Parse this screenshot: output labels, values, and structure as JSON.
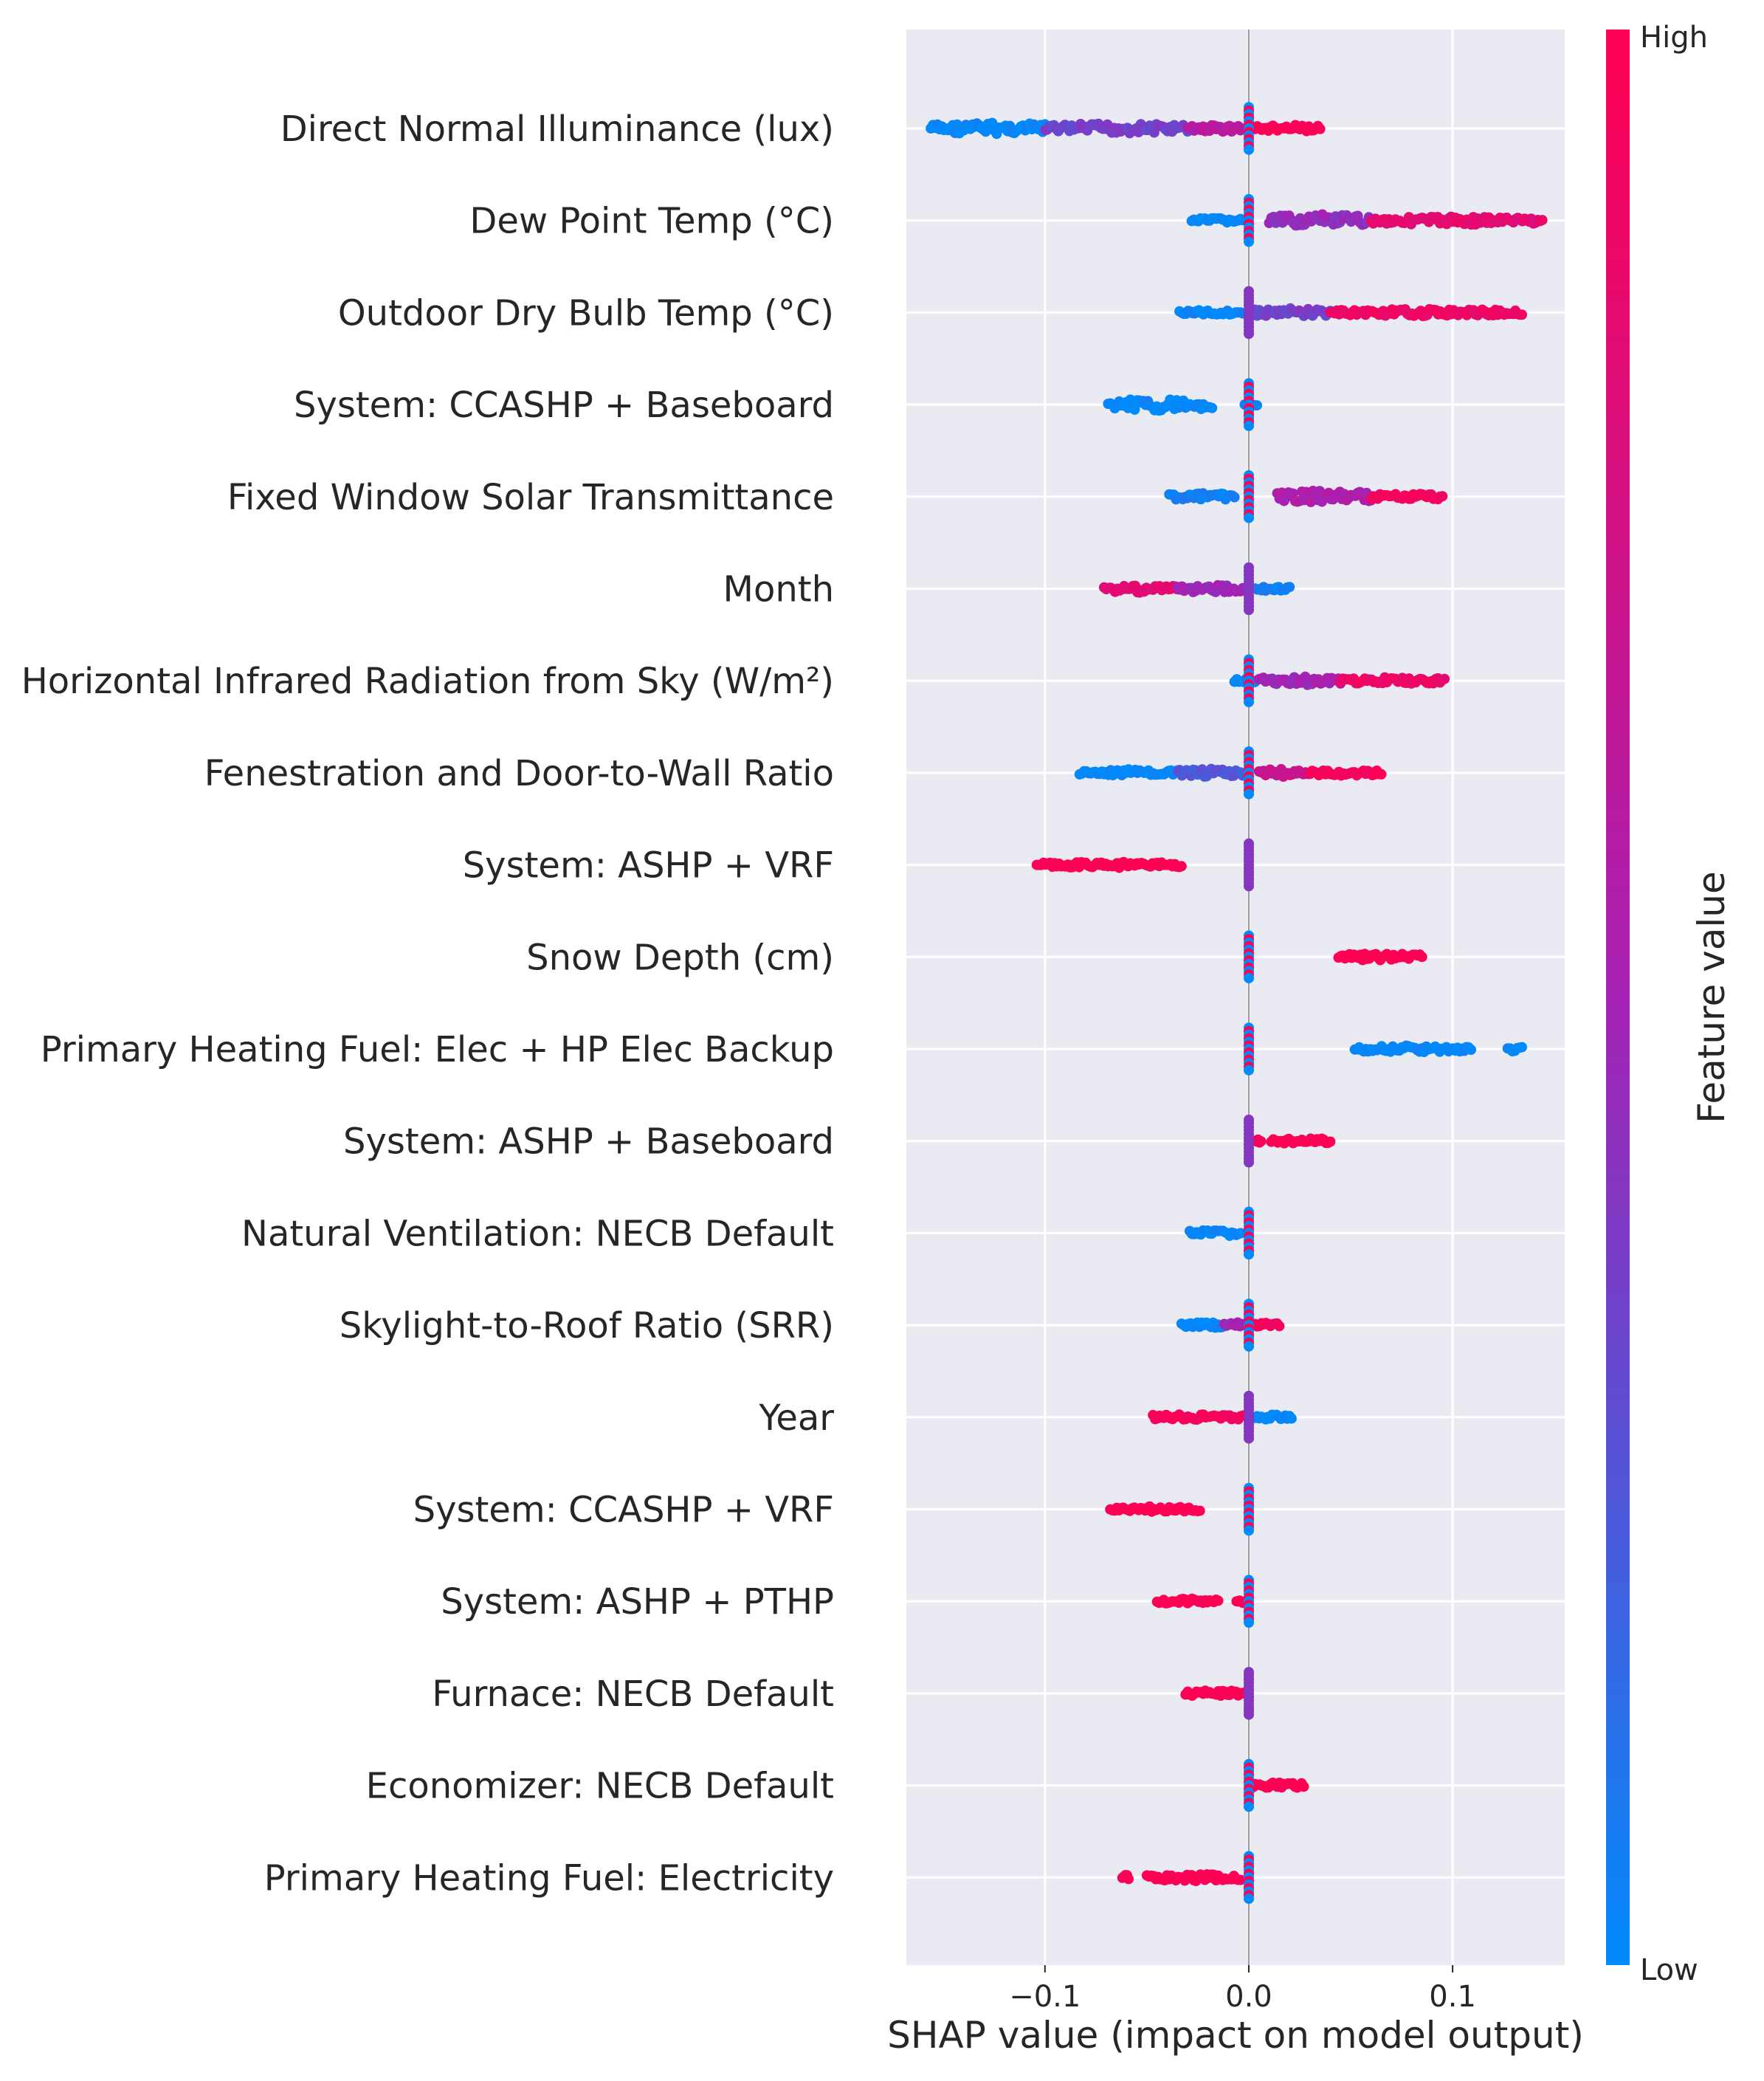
{
  "chart_data": {
    "type": "scatter",
    "subtype": "shap-beeswarm",
    "title": "",
    "xlabel": "SHAP value (impact on model output)",
    "ylabel": "",
    "xlim": [
      -0.168,
      0.155
    ],
    "xticks": [
      -0.1,
      0.0,
      0.1
    ],
    "xtick_labels": [
      "−0.1",
      "0.0",
      "0.1"
    ],
    "grid": true,
    "background": "#eaeaf2",
    "colorbar": {
      "label": "Feature value",
      "high_label": "High",
      "low_label": "Low",
      "low_color": "#008afb",
      "mid_color": "#a521b3",
      "high_color": "#ff0052"
    },
    "features": [
      {
        "name": "Direct Normal Illuminance (lux)",
        "min": -0.156,
        "max": 0.035,
        "segments": [
          [
            -0.156,
            -0.1,
            0.0,
            14
          ],
          [
            -0.1,
            -0.03,
            0.35,
            12
          ],
          [
            -0.03,
            -0.003,
            0.6,
            9
          ],
          [
            0.003,
            0.035,
            1.0,
            8
          ]
        ]
      },
      {
        "name": "Dew Point Temp (°C)",
        "min": -0.028,
        "max": 0.144,
        "segments": [
          [
            -0.028,
            -0.003,
            0.0,
            6
          ],
          [
            0.01,
            0.06,
            0.45,
            14
          ],
          [
            0.06,
            0.144,
            0.85,
            10
          ]
        ]
      },
      {
        "name": "Outdoor Dry Bulb Temp (°C)",
        "min": -0.034,
        "max": 0.134,
        "segments": [
          [
            -0.034,
            -0.003,
            0.0,
            6
          ],
          [
            0.003,
            0.04,
            0.35,
            10
          ],
          [
            0.04,
            0.134,
            0.9,
            8
          ]
        ]
      },
      {
        "name": "System: CCASHP + Baseboard",
        "min": -0.069,
        "max": 0.004,
        "segments": [
          [
            -0.069,
            -0.018,
            0.0,
            14
          ],
          [
            -0.002,
            0.004,
            0.0,
            4
          ]
        ]
      },
      {
        "name": "Fixed Window Solar Transmittance",
        "min": -0.039,
        "max": 0.095,
        "segments": [
          [
            -0.039,
            -0.007,
            0.05,
            8
          ],
          [
            0.014,
            0.06,
            0.55,
            14
          ],
          [
            0.06,
            0.095,
            0.95,
            8
          ]
        ]
      },
      {
        "name": "Month",
        "min": -0.071,
        "max": 0.02,
        "segments": [
          [
            -0.071,
            -0.035,
            0.85,
            9
          ],
          [
            -0.035,
            -0.003,
            0.5,
            9
          ],
          [
            0.003,
            0.02,
            0.05,
            6
          ]
        ]
      },
      {
        "name": "Horizontal Infrared Radiation from Sky (W/m²)",
        "min": -0.007,
        "max": 0.096,
        "segments": [
          [
            -0.007,
            0.003,
            0.0,
            5
          ],
          [
            0.005,
            0.045,
            0.5,
            10
          ],
          [
            0.045,
            0.096,
            0.9,
            8
          ]
        ]
      },
      {
        "name": "Fenestration and Door-to-Wall Ratio",
        "min": -0.083,
        "max": 0.065,
        "segments": [
          [
            -0.083,
            -0.035,
            0.0,
            8
          ],
          [
            -0.035,
            -0.003,
            0.25,
            9
          ],
          [
            0.005,
            0.03,
            0.7,
            9
          ],
          [
            0.03,
            0.065,
            0.95,
            7
          ]
        ]
      },
      {
        "name": "System: ASHP + VRF",
        "min": -0.104,
        "max": -0.033,
        "segments": [
          [
            -0.104,
            -0.033,
            1.0,
            7
          ]
        ]
      },
      {
        "name": "Snow Depth (cm)",
        "min": 0.044,
        "max": 0.085,
        "segments": [
          [
            0.044,
            0.085,
            1.0,
            9
          ]
        ]
      },
      {
        "name": "Primary Heating Fuel: Elec + HP Elec Backup",
        "min": 0.052,
        "max": 0.134,
        "segments": [
          [
            0.052,
            0.109,
            0.0,
            8
          ],
          [
            0.127,
            0.134,
            0.0,
            6
          ]
        ]
      },
      {
        "name": "System: ASHP + Baseboard",
        "min": 0.003,
        "max": 0.04,
        "segments": [
          [
            0.003,
            0.006,
            1.0,
            5
          ],
          [
            0.011,
            0.04,
            1.0,
            7
          ]
        ]
      },
      {
        "name": "Natural Ventilation: NECB Default",
        "min": -0.029,
        "max": 0.003,
        "segments": [
          [
            -0.029,
            -0.004,
            0.0,
            8
          ]
        ]
      },
      {
        "name": "Skylight-to-Roof Ratio (SRR)",
        "min": -0.033,
        "max": 0.015,
        "segments": [
          [
            -0.033,
            -0.012,
            0.0,
            7
          ],
          [
            -0.012,
            0.0,
            0.5,
            7
          ],
          [
            0.003,
            0.015,
            0.95,
            6
          ]
        ]
      },
      {
        "name": "Year",
        "min": -0.047,
        "max": 0.021,
        "segments": [
          [
            -0.047,
            -0.003,
            0.95,
            7
          ],
          [
            0.003,
            0.021,
            0.0,
            6
          ]
        ]
      },
      {
        "name": "System: CCASHP + VRF",
        "min": -0.068,
        "max": -0.024,
        "segments": [
          [
            -0.068,
            -0.024,
            1.0,
            7
          ]
        ]
      },
      {
        "name": "System: ASHP + PTHP",
        "min": -0.045,
        "max": -0.003,
        "segments": [
          [
            -0.045,
            -0.015,
            1.0,
            6
          ],
          [
            -0.006,
            -0.003,
            1.0,
            5
          ]
        ]
      },
      {
        "name": "Furnace: NECB Default",
        "min": -0.031,
        "max": 0.002,
        "segments": [
          [
            -0.031,
            -0.002,
            1.0,
            7
          ]
        ]
      },
      {
        "name": "Economizer: NECB Default",
        "min": -0.003,
        "max": 0.027,
        "segments": [
          [
            0.002,
            0.027,
            1.0,
            7
          ]
        ]
      },
      {
        "name": "Primary Heating Fuel: Electricity",
        "min": -0.062,
        "max": -0.004,
        "segments": [
          [
            -0.062,
            -0.059,
            1.0,
            6
          ],
          [
            -0.05,
            -0.004,
            1.0,
            8
          ]
        ]
      }
    ]
  }
}
